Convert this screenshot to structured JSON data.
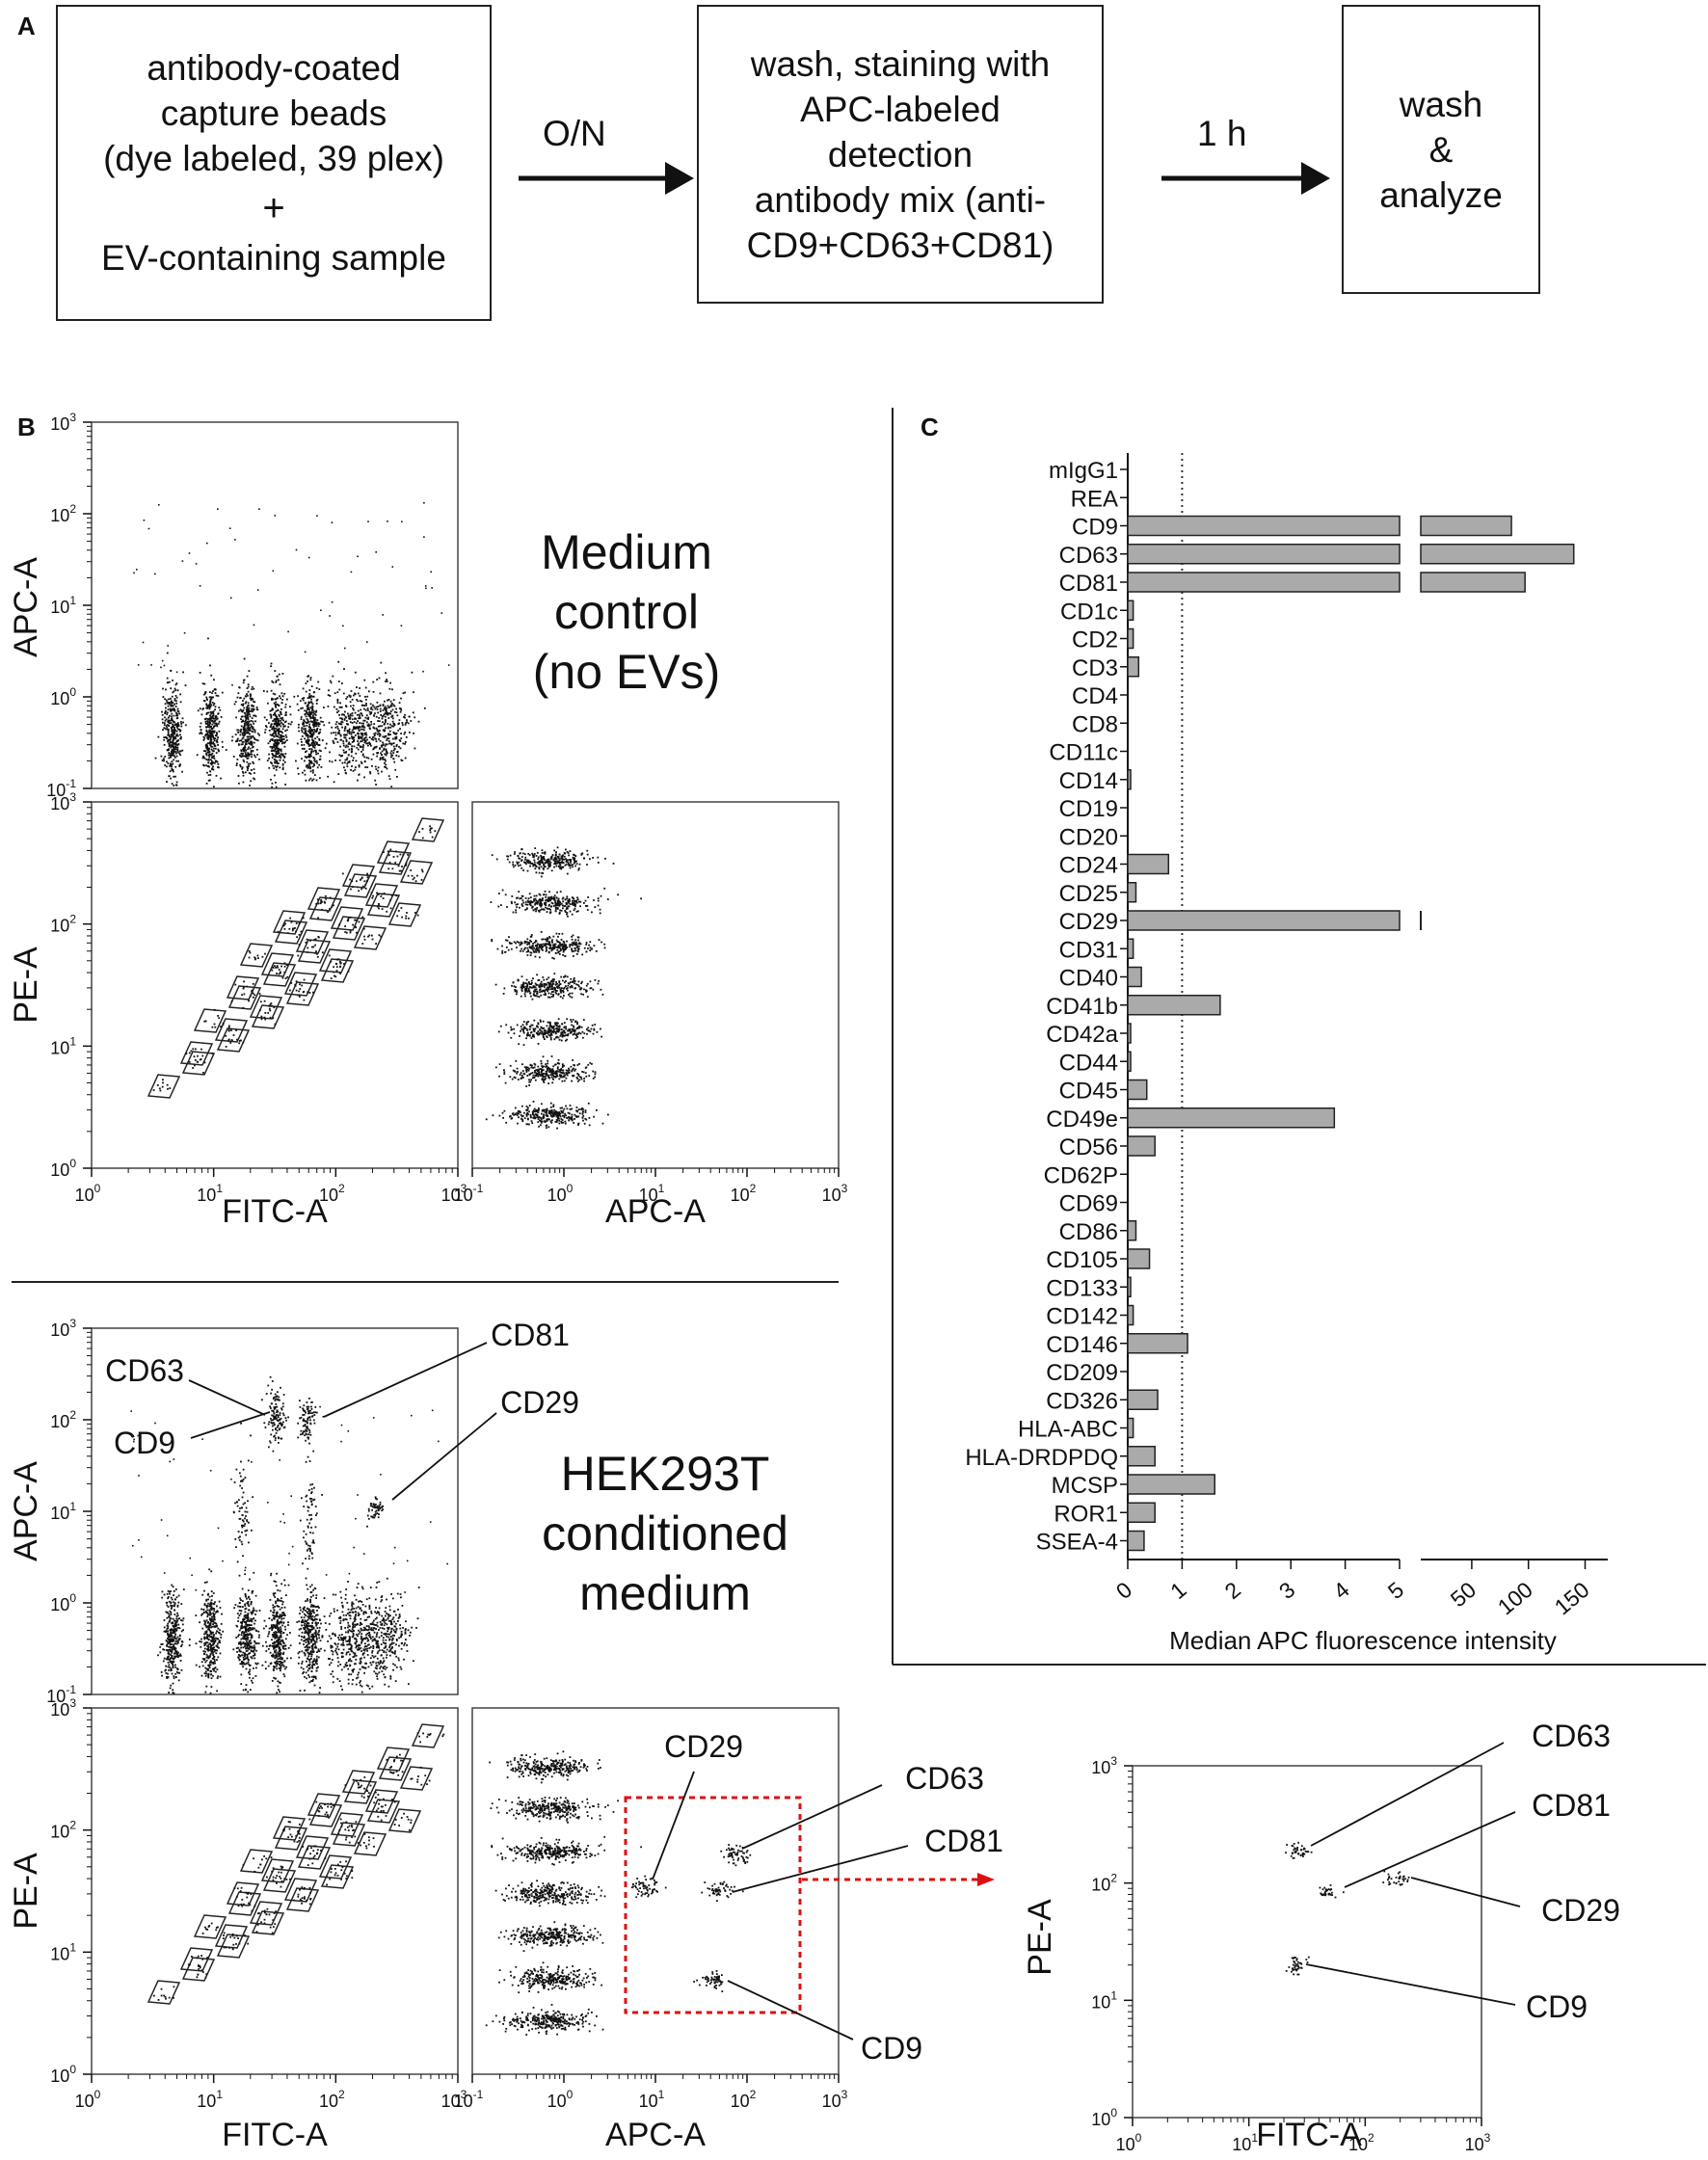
{
  "panel_a": {
    "letter": "A",
    "box1": {
      "line1": "antibody-coated",
      "line2": "capture beads",
      "line3": "(dye labeled, 39 plex)",
      "plus": "+",
      "line4": "EV-containing sample"
    },
    "arrow1_label": "O/N",
    "box2": {
      "line1": "wash, staining with",
      "line2": "APC-labeled",
      "line3": "detection",
      "line4": "antibody mix (anti-",
      "line5": "CD9+CD63+CD81)"
    },
    "arrow2_label": "1 h",
    "box3": {
      "line1": "wash",
      "line2": "&",
      "line3": "analyze"
    }
  },
  "panel_b": {
    "letter": "B",
    "medium_label": {
      "line1": "Medium",
      "line2": "control",
      "line3": "(no EVs)"
    },
    "hek_label": {
      "line1": "HEK293T",
      "line2": "conditioned",
      "line3": "medium"
    },
    "axis": {
      "apc": "APC-A",
      "pe": "PE-A",
      "fitc": "FITC-A"
    },
    "annotations_top": [
      "CD63",
      "CD81",
      "CD9",
      "CD29"
    ],
    "annotations_bottom": [
      "CD29",
      "CD63",
      "CD81",
      "CD9"
    ]
  },
  "panel_d": {
    "annotations": [
      "CD63",
      "CD81",
      "CD29",
      "CD9"
    ],
    "ylabel": "PE-A",
    "xlabel": "FITC-A"
  },
  "chart_data": {
    "type": "bar",
    "letter": "C",
    "orientation": "horizontal",
    "xlabel": "Median APC fluorescence intensity",
    "x_segment1_ticks": [
      "0",
      "1",
      "2",
      "3",
      "4",
      "5"
    ],
    "x_segment2_ticks": [
      "50",
      "100",
      "150"
    ],
    "x_segment1_range": [
      0,
      5
    ],
    "x_segment2_range": [
      5,
      170
    ],
    "threshold_line": 1,
    "categories": [
      "mIgG1",
      "REA",
      "CD9",
      "CD63",
      "CD81",
      "CD1c",
      "CD2",
      "CD3",
      "CD4",
      "CD8",
      "CD11c",
      "CD14",
      "CD19",
      "CD20",
      "CD24",
      "CD25",
      "CD29",
      "CD31",
      "CD40",
      "CD41b",
      "CD42a",
      "CD44",
      "CD45",
      "CD49e",
      "CD56",
      "CD62P",
      "CD69",
      "CD86",
      "CD105",
      "CD133",
      "CD142",
      "CD146",
      "CD209",
      "CD326",
      "HLA-ABC",
      "HLA-DRDPDQ",
      "MCSP",
      "ROR1",
      "SSEA-4"
    ],
    "values": [
      0,
      0,
      85,
      140,
      97,
      0.1,
      0.1,
      0.2,
      0,
      0,
      0,
      0.05,
      0,
      0,
      0.75,
      0.15,
      5.5,
      0.1,
      0.25,
      1.7,
      0.05,
      0.05,
      0.35,
      3.8,
      0.5,
      0,
      0,
      0.15,
      0.4,
      0.05,
      0.1,
      1.1,
      0,
      0.55,
      0.1,
      0.5,
      1.6,
      0.5,
      0.3
    ],
    "bar_color": "#aaaaaa"
  },
  "colors": {
    "gate_arrow": "#dd1111"
  }
}
